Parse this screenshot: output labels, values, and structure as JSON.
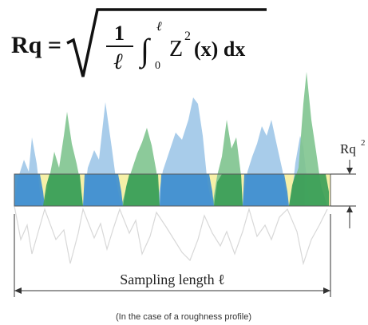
{
  "formula": {
    "lhs": "Rq =",
    "numerator": "1",
    "denominator": "ℓ",
    "integral_upper": "ℓ",
    "integral_lower": "0",
    "integrand_func": "Z",
    "integrand_exp": "2",
    "integrand_arg": "(x) dx"
  },
  "diagram": {
    "rq_label": "Rq",
    "rq_superscript": "2",
    "sampling_length_label": "Sampling length ℓ",
    "caption": "(In the case of a roughness profile)"
  },
  "colors": {
    "band_fill": "#f6f0a8",
    "band_stroke": "#6a6a4a",
    "blue_peaks": "#9fc7e8",
    "blue_band": "#3f8fd0",
    "green_peaks": "#7fc48f",
    "green_band": "#3c9f58",
    "mirror_line": "#d8d8d8",
    "text": "#111111"
  }
}
